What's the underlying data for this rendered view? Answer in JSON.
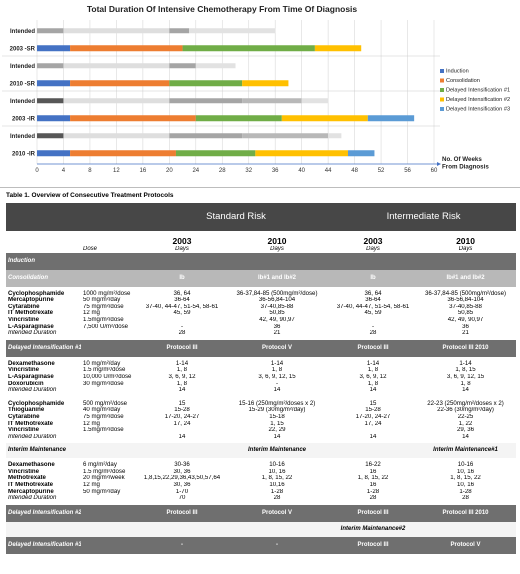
{
  "chart_data": {
    "type": "bar",
    "orientation": "horizontal",
    "stacked": true,
    "title": "Total Duration Of Intensive Chemotherapy From Time Of Diagnosis",
    "xlabel": "No. Of Weeks From Diagnosis",
    "xlim": [
      0,
      60
    ],
    "x_ticks": [
      "0",
      "4",
      "8",
      "12",
      "16",
      "20",
      "24",
      "28",
      "32",
      "36",
      "40",
      "44",
      "48",
      "52",
      "56",
      "60"
    ],
    "legend_position": "right",
    "legend": [
      {
        "name": "Induction",
        "color": "#4472c4"
      },
      {
        "name": "Consolidation",
        "color": "#ed7d31"
      },
      {
        "name": "Delayed Intensification #1",
        "color": "#70ad47"
      },
      {
        "name": "Delayed Intensification #2",
        "color": "#ffc000"
      },
      {
        "name": "Delayed Intensification #3",
        "color": "#5b9bd5"
      }
    ],
    "group_separators": [
      1,
      3,
      5
    ],
    "rows": [
      {
        "label": "Intended",
        "intended": true,
        "segments": [
          [
            0,
            4,
            "#a5a5a5"
          ],
          [
            4,
            20,
            "#dedede"
          ],
          [
            20,
            23,
            "#a5a5a5"
          ],
          [
            23,
            36,
            "#e2e2e2"
          ]
        ]
      },
      {
        "label": "2003 -SR",
        "intended": false,
        "segments": [
          [
            0,
            5,
            "#4472c4"
          ],
          [
            5,
            22,
            "#ed7d31"
          ],
          [
            22,
            42,
            "#70ad47"
          ],
          [
            42,
            49,
            "#ffc000"
          ]
        ]
      },
      {
        "label": "Intended",
        "intended": true,
        "segments": [
          [
            0,
            4,
            "#a5a5a5"
          ],
          [
            4,
            20,
            "#dedede"
          ],
          [
            20,
            24,
            "#a5a5a5"
          ],
          [
            24,
            30,
            "#e2e2e2"
          ]
        ]
      },
      {
        "label": "2010 -SR",
        "intended": false,
        "segments": [
          [
            0,
            5,
            "#4472c4"
          ],
          [
            5,
            20,
            "#ed7d31"
          ],
          [
            20,
            31,
            "#70ad47"
          ],
          [
            31,
            38,
            "#ffc000"
          ]
        ]
      },
      {
        "label": "Intended",
        "intended": true,
        "segments": [
          [
            0,
            4,
            "#575757"
          ],
          [
            4,
            20,
            "#dedede"
          ],
          [
            20,
            31,
            "#a5a5a5"
          ],
          [
            31,
            40,
            "#b8b8b8"
          ],
          [
            40,
            44,
            "#e2e2e2"
          ]
        ]
      },
      {
        "label": "2003 -IR",
        "intended": false,
        "segments": [
          [
            0,
            5,
            "#4472c4"
          ],
          [
            5,
            24,
            "#ed7d31"
          ],
          [
            24,
            37,
            "#70ad47"
          ],
          [
            37,
            50,
            "#ffc000"
          ],
          [
            50,
            57,
            "#5b9bd5"
          ]
        ]
      },
      {
        "label": "Intended",
        "intended": true,
        "segments": [
          [
            0,
            4,
            "#575757"
          ],
          [
            4,
            20,
            "#dedede"
          ],
          [
            20,
            31,
            "#a5a5a5"
          ],
          [
            31,
            44,
            "#b8b8b8"
          ],
          [
            44,
            46,
            "#e2e2e2"
          ]
        ]
      },
      {
        "label": "2010 -IR",
        "intended": false,
        "segments": [
          [
            0,
            5,
            "#4472c4"
          ],
          [
            5,
            21,
            "#ed7d31"
          ],
          [
            21,
            33,
            "#70ad47"
          ],
          [
            33,
            47,
            "#ffc000"
          ],
          [
            47,
            51,
            "#5b9bd5"
          ]
        ]
      }
    ]
  },
  "table": {
    "title": "Table 1. Overview of Consecutive Treatment Protocols",
    "groups": [
      "Standard Risk",
      "Intermediate Risk"
    ],
    "years": [
      "2003",
      "2010",
      "2003",
      "2010"
    ],
    "dose_label": "Dose",
    "days_label": "Days",
    "rows": [
      {
        "kind": "band",
        "cells": [
          "Induction",
          "",
          "",
          "",
          "",
          ""
        ]
      },
      {
        "kind": "lband",
        "cells": [
          "Consolidation",
          "",
          "Ib",
          "Ib#1 and Ib#2",
          "Ib",
          "Ib#1 and Ib#2"
        ]
      },
      {
        "kind": "drug",
        "pos": "first",
        "cells": [
          "Cyclophosphamide",
          "1000 mg/m²/dose",
          "36, 64",
          "36-37,84-85 (500mg/m²/dose)",
          "36, 64",
          "36-37,84-85 (500mg/m²/dose)"
        ]
      },
      {
        "kind": "drug",
        "cells": [
          "Mercaptopurine",
          "50 mg/m²/day",
          "36-64",
          "36-56,84-104",
          "36-64",
          "36-56,84-104"
        ]
      },
      {
        "kind": "drug",
        "cells": [
          "Cytarabine",
          "75 mg/m²/dose",
          "37-40, 44-47, 51-54, 58-61",
          "37-40,85-88",
          "37-40, 44-47, 51-54, 58-61",
          "37-40,85-88"
        ]
      },
      {
        "kind": "drug",
        "cells": [
          "IT Methotrexate",
          "12 mg",
          "45, 59",
          "50,85",
          "45, 59",
          "50,85"
        ]
      },
      {
        "kind": "drug",
        "cells": [
          "Vincristine",
          "1.5mg/m²/dose",
          "",
          "42, 49, 90,97",
          "",
          "42, 49, 90,97"
        ]
      },
      {
        "kind": "drug",
        "cells": [
          "L-Asparaginase",
          "7,500 U/m²/dose",
          "-",
          "36",
          "-",
          "36"
        ]
      },
      {
        "kind": "intended",
        "pos": "last",
        "cells": [
          "Intended Duration",
          "",
          "28",
          "21",
          "28",
          "21"
        ]
      },
      {
        "kind": "band",
        "cells": [
          "Delayed Intensification #1",
          "",
          "Protocol III",
          "Protocol V",
          "Protocol III",
          "Protocol III 2010"
        ]
      },
      {
        "kind": "drug",
        "pos": "first",
        "cells": [
          "Dexamethasone",
          "10 mg/m²/day",
          "1-14",
          "1-14",
          "1-14",
          "1-14"
        ]
      },
      {
        "kind": "drug",
        "cells": [
          "Vincristine",
          "1.5 mg/m²/dose",
          "1, 8",
          "1, 8",
          "1, 8",
          "1, 8, 15"
        ]
      },
      {
        "kind": "drug",
        "cells": [
          "L-Asparaginase",
          "10,000 U/m²/dose",
          "3, 6, 9, 12",
          "3, 6, 9, 12, 15",
          "3, 6, 9, 12",
          "3, 6, 9, 12, 15"
        ]
      },
      {
        "kind": "drug",
        "cells": [
          "Doxorubicin",
          "30 mg/m²/dose",
          "1, 8",
          "-",
          "1, 8",
          "1, 8"
        ]
      },
      {
        "kind": "intended",
        "pos": "last",
        "cells": [
          "Intended Duration",
          "",
          "14",
          "14",
          "14",
          "14"
        ]
      },
      {
        "kind": "drug",
        "pos": "first",
        "cells": [
          "Cyclophosphamide",
          "500 mg/m²/dose",
          "15",
          "15-16 (250mg/m²/doses x 2)",
          "15",
          "22-23 (250mg/m²/doses x 2)"
        ]
      },
      {
        "kind": "drug",
        "cells": [
          "Thioguanine",
          "40 mg/m²/day",
          "15-28",
          "15-29 (30mg/m²/day)",
          "15-28",
          "22-36 (30mg/m²/day)"
        ]
      },
      {
        "kind": "drug",
        "cells": [
          "Cytarabine",
          "75 mg/m²/dose",
          "17-20, 24-27",
          "15-18",
          "17-20, 24-27",
          "22-25"
        ]
      },
      {
        "kind": "drug",
        "cells": [
          "IT Methotrexate",
          "12 mg",
          "17, 24",
          "1, 15",
          "17, 24",
          "1, 22"
        ]
      },
      {
        "kind": "drug",
        "cells": [
          "Vincristine",
          "1.5mg/m²/dose",
          "",
          "22, 29",
          "",
          "29, 36"
        ]
      },
      {
        "kind": "intended",
        "pos": "last",
        "cells": [
          "Intended Duration",
          "",
          "14",
          "14",
          "14",
          "14"
        ]
      },
      {
        "kind": "wband",
        "cells": [
          "Interim Maintenance",
          "",
          "",
          "Interim Maintenance",
          "",
          "Interim Maintenance#1"
        ]
      },
      {
        "kind": "drug",
        "pos": "first",
        "cells": [
          "Dexamethasone",
          "6 mg/m²/day",
          "30-36",
          "10-16",
          "16-22",
          "10-16"
        ]
      },
      {
        "kind": "drug",
        "cells": [
          "Vincristine",
          "1.5 mg/m²/dose",
          "30, 36",
          "10, 16",
          "16",
          "10, 16"
        ]
      },
      {
        "kind": "drug",
        "cells": [
          "Methotrexate",
          "20 mg/m²/week",
          "1,8,15,22,29,36,43,50,57,64",
          "1, 8, 15, 22",
          "1, 8, 15, 22",
          "1, 8, 15, 22"
        ]
      },
      {
        "kind": "drug",
        "cells": [
          "IT Methotrexate",
          "12 mg",
          "30, 36",
          "10,16",
          "16",
          "10, 16"
        ]
      },
      {
        "kind": "drug",
        "cells": [
          "Mercaptopurine",
          "50 mg/m²/day",
          "1-70",
          "1-28",
          "1-28",
          "1-28"
        ]
      },
      {
        "kind": "intended",
        "pos": "last",
        "cells": [
          "Intended Duration",
          "",
          "70",
          "28",
          "28",
          "28"
        ]
      },
      {
        "kind": "band",
        "cells": [
          "Delayed Intensification #2",
          "",
          "Protocol III",
          "Protocol V",
          "Protocol III",
          "Protocol III 2010"
        ]
      },
      {
        "kind": "wband",
        "cells": [
          "",
          "",
          "",
          "",
          "Interim Maintenance#2",
          ""
        ]
      },
      {
        "kind": "band",
        "cells": [
          "Delayed Intensification #3",
          "",
          "-",
          "-",
          "Protocol III",
          "Protocol V"
        ]
      }
    ]
  }
}
